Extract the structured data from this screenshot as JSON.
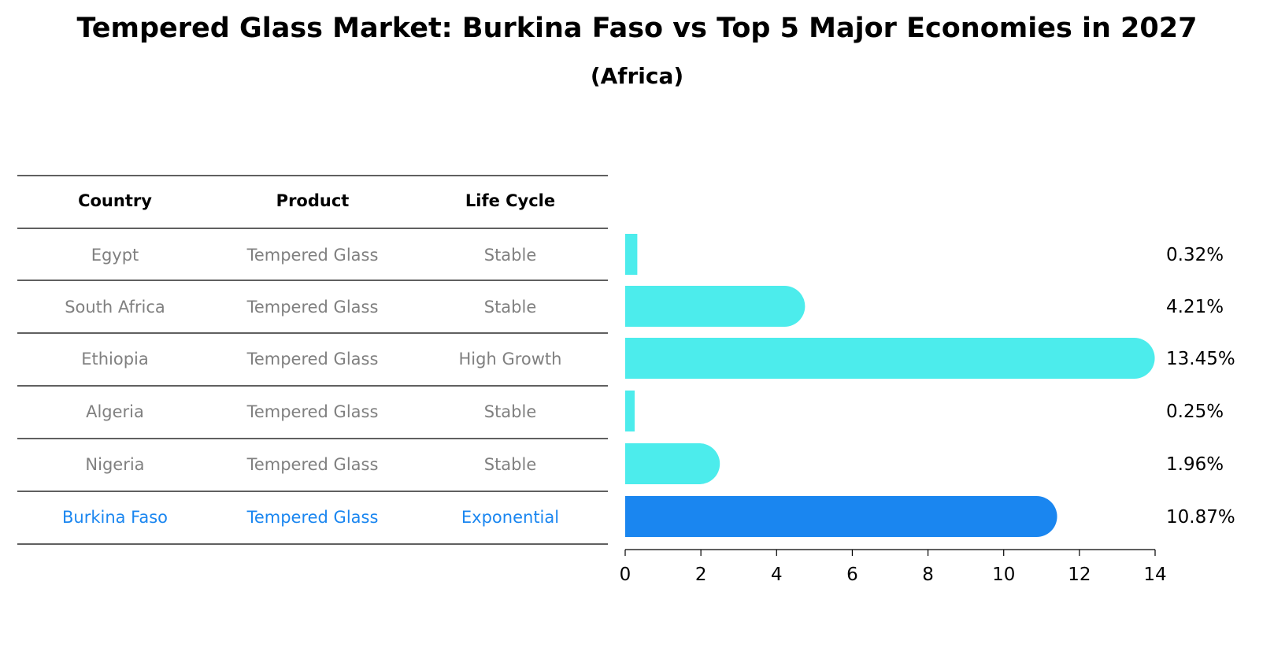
{
  "title": "Tempered Glass Market: Burkina Faso vs Top 5 Major Economies in 2027",
  "subtitle": "(Africa)",
  "colors": {
    "highlight": "#1a86f0",
    "bar": "#4cecec",
    "muted_text": "#808080"
  },
  "table": {
    "headers": [
      "Country",
      "Product",
      "Life Cycle"
    ],
    "rows": [
      {
        "country": "Egypt",
        "product": "Tempered Glass",
        "life_cycle": "Stable",
        "highlight": false
      },
      {
        "country": "South Africa",
        "product": "Tempered Glass",
        "life_cycle": "Stable",
        "highlight": false
      },
      {
        "country": "Ethiopia",
        "product": "Tempered Glass",
        "life_cycle": "High Growth",
        "highlight": false
      },
      {
        "country": "Algeria",
        "product": "Tempered Glass",
        "life_cycle": "Stable",
        "highlight": false
      },
      {
        "country": "Nigeria",
        "product": "Tempered Glass",
        "life_cycle": "Stable",
        "highlight": false
      },
      {
        "country": "Burkina Faso",
        "product": "Tempered Glass",
        "life_cycle": "Exponential",
        "highlight": true
      }
    ]
  },
  "chart_data": {
    "type": "bar",
    "orientation": "horizontal",
    "categories": [
      "Egypt",
      "South Africa",
      "Ethiopia",
      "Algeria",
      "Nigeria",
      "Burkina Faso"
    ],
    "values": [
      0.32,
      4.21,
      13.45,
      0.25,
      1.96,
      10.87
    ],
    "value_labels": [
      "0.32%",
      "4.21%",
      "13.45%",
      "0.25%",
      "1.96%",
      "10.87%"
    ],
    "xlim": [
      0,
      14
    ],
    "xticks": [
      0,
      2,
      4,
      6,
      8,
      10,
      12,
      14
    ],
    "grid": false
  }
}
